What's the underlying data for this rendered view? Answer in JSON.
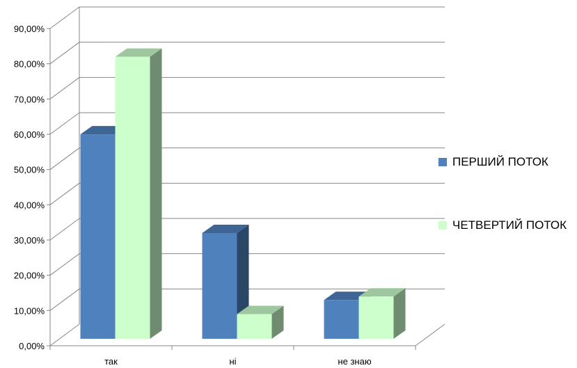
{
  "chart_data": {
    "type": "bar",
    "categories": [
      "так",
      "ні",
      "не знаю"
    ],
    "series": [
      {
        "name": "ПЕРШИЙ ПОТОК",
        "values": [
          0.58,
          0.3,
          0.11
        ],
        "color": "#4F81BD"
      },
      {
        "name": "ЧЕТВЕРТИЙ ПОТОК",
        "values": [
          0.8,
          0.07,
          0.12
        ],
        "color": "#CCFFCC"
      }
    ],
    "yticks": [
      "0,00%",
      "10,00%",
      "20,00%",
      "30,00%",
      "40,00%",
      "50,00%",
      "60,00%",
      "70,00%",
      "80,00%",
      "90,00%"
    ],
    "ylim": [
      0,
      0.9
    ],
    "title": "",
    "xlabel": "",
    "ylabel": "",
    "grid": true,
    "legend_position": "right",
    "style": "3d-clustered-column"
  }
}
